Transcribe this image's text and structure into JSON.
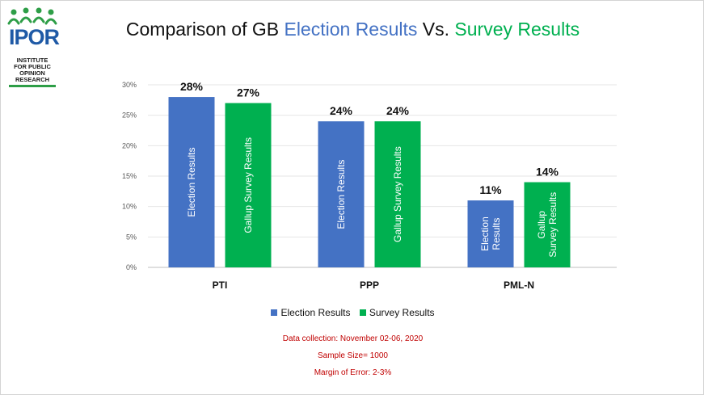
{
  "logo": {
    "abbr": "IPOR",
    "lines": [
      "INSTITUTE",
      "FOR PUBLIC",
      "OPINION",
      "RESEARCH"
    ]
  },
  "title": {
    "prefix": "Comparison of GB ",
    "election": "Election Results",
    "mid": " Vs. ",
    "survey": "Survey Results"
  },
  "colors": {
    "election": "#4472c4",
    "survey": "#00b050",
    "notes": "#c00000"
  },
  "legend": {
    "election": "Election Results",
    "survey": "Survey Results"
  },
  "notes": {
    "collection": "Data collection: November 02-06, 2020",
    "sample": "Sample Size= 1000",
    "margin": "Margin of Error: 2-3%"
  },
  "chart_data": {
    "type": "bar",
    "categories": [
      "PTI",
      "PPP",
      "PML-N"
    ],
    "series": [
      {
        "name": "Election Results",
        "values": [
          28,
          24,
          11
        ],
        "labels": [
          "28%",
          "24%",
          "11%"
        ],
        "bar_text": [
          [
            "Election Results"
          ],
          [
            "Election Results"
          ],
          [
            "Election",
            "Results"
          ]
        ]
      },
      {
        "name": "Survey Results",
        "values": [
          27,
          24,
          14
        ],
        "labels": [
          "27%",
          "24%",
          "14%"
        ],
        "bar_text": [
          [
            "Gallup Survey Results"
          ],
          [
            "Gallup Survey Results"
          ],
          [
            "Gallup",
            "Survey Results"
          ]
        ]
      }
    ],
    "yticks": [
      "0%",
      "5%",
      "10%",
      "15%",
      "20%",
      "25%",
      "30%"
    ],
    "ylim": [
      0,
      30
    ],
    "grid": true,
    "legend_position": "bottom"
  }
}
